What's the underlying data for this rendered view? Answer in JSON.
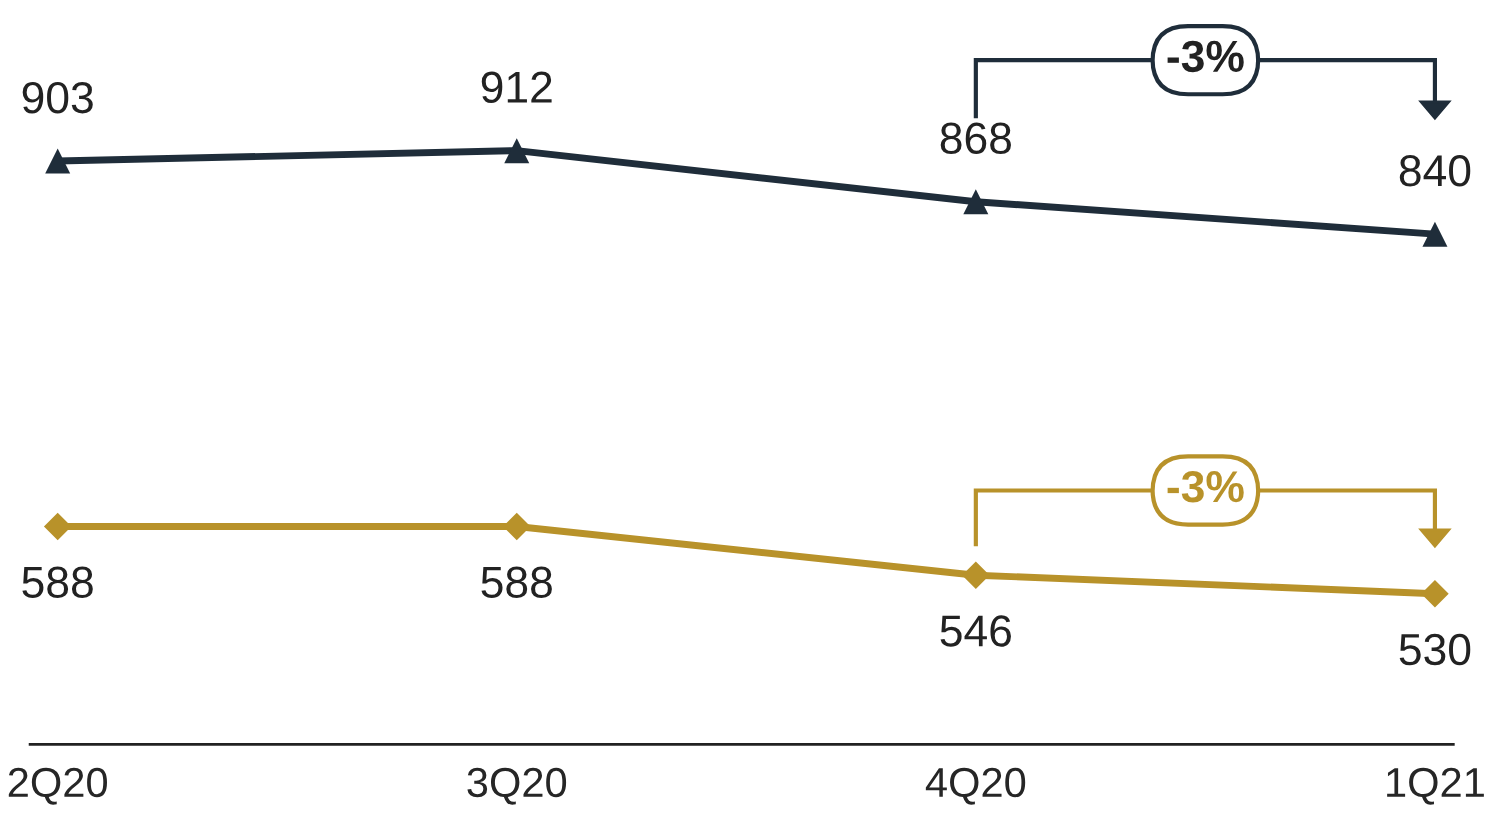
{
  "chart_data": {
    "type": "line",
    "categories": [
      "2Q20",
      "3Q20",
      "4Q20",
      "1Q21"
    ],
    "series": [
      {
        "color": "#1f2d3a",
        "marker": "triangle",
        "values": [
          903,
          912,
          868,
          840
        ]
      },
      {
        "color": "#b8922a",
        "marker": "diamond",
        "values": [
          588,
          588,
          546,
          530
        ]
      }
    ],
    "tick_labels": "x",
    "data_labels": true,
    "line_style": "solid",
    "annotations": [
      "-3%",
      "-3%"
    ]
  }
}
